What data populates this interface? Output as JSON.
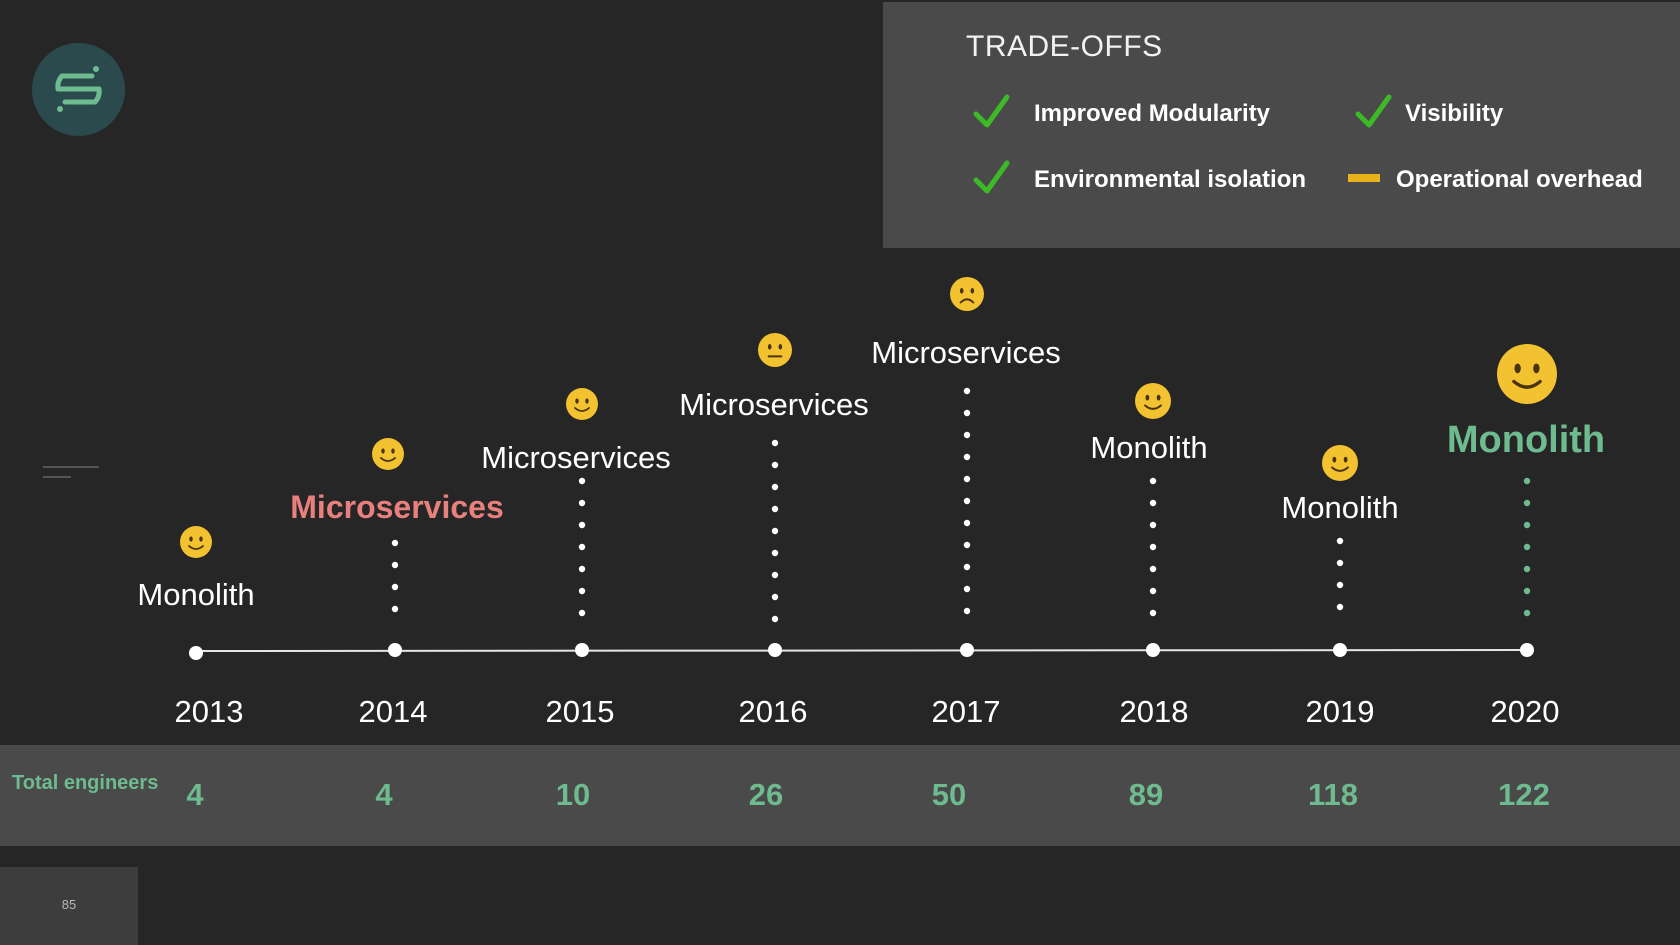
{
  "tradeoffs": {
    "title": "TRADE-OFFS",
    "items": [
      {
        "label": "Improved Modularity",
        "mark": "check-icon",
        "color": "#3dbb27"
      },
      {
        "label": "Visibility",
        "mark": "check-icon",
        "color": "#3dbb27"
      },
      {
        "label": "Environmental isolation",
        "mark": "check-icon",
        "color": "#3dbb27"
      },
      {
        "label": "Operational overhead",
        "mark": "dash-icon",
        "color": "#e9b21a"
      }
    ]
  },
  "timeline": [
    {
      "year": "2013",
      "arch": "Monolith",
      "mood": "slight-smile-emoji",
      "engineers": "4",
      "highlight": ""
    },
    {
      "year": "2014",
      "arch": "Microservices",
      "mood": "slight-smile-emoji",
      "engineers": "4",
      "highlight": "red"
    },
    {
      "year": "2015",
      "arch": "Microservices",
      "mood": "slight-smile-emoji",
      "engineers": "10",
      "highlight": ""
    },
    {
      "year": "2016",
      "arch": "Microservices",
      "mood": "neutral-face-emoji",
      "engineers": "26",
      "highlight": ""
    },
    {
      "year": "2017",
      "arch": "Microservices",
      "mood": "frown-emoji",
      "engineers": "50",
      "highlight": ""
    },
    {
      "year": "2018",
      "arch": "Monolith",
      "mood": "slight-smile-emoji",
      "engineers": "89",
      "highlight": ""
    },
    {
      "year": "2019",
      "arch": "Monolith",
      "mood": "slight-smile-emoji",
      "engineers": "118",
      "highlight": ""
    },
    {
      "year": "2020",
      "arch": "Monolith",
      "mood": "big-smile-emoji",
      "engineers": "122",
      "highlight": "green"
    }
  ],
  "engineers_label": "Total engineers",
  "page_number": "85",
  "colors": {
    "background": "#262626",
    "panel": "#4a4a4a",
    "accent_green": "#6dbb8e",
    "accent_red": "#e8807e",
    "check_green": "#3dbb27",
    "emoji_yellow": "#f2c230"
  }
}
